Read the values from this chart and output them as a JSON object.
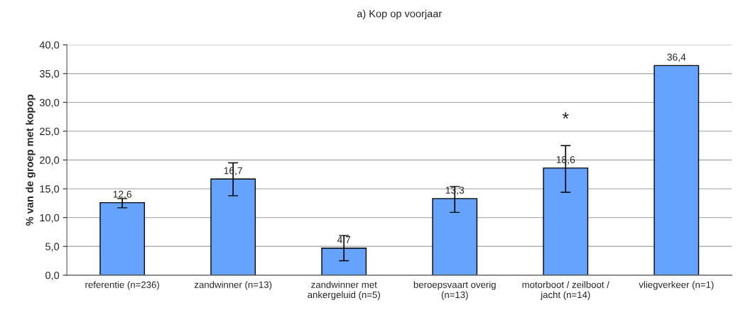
{
  "chart_data": {
    "type": "bar",
    "title": "a) Kop op voorjaar",
    "ylabel": "% van de groep met kopop",
    "categories": [
      "referentie (n=236)",
      "zandwinner (n=13)",
      "zandwinner met\nankergeluid (n=5)",
      "beroepsvaart overig\n(n=13)",
      "motorboot / zeilboot /\njacht (n=14)",
      "vliegverkeer (n=1)"
    ],
    "values": [
      12.6,
      16.7,
      4.7,
      13.3,
      18.6,
      36.4
    ],
    "value_labels": [
      "12,6",
      "16,7",
      "4,7",
      "13,3",
      "18,6",
      "36,4"
    ],
    "errors": [
      [
        11.7,
        13.3
      ],
      [
        13.8,
        19.5
      ],
      [
        2.5,
        6.9
      ],
      [
        10.9,
        15.4
      ],
      [
        14.4,
        22.5
      ],
      null
    ],
    "color": "#66a3ff",
    "annotations": [
      "*"
    ],
    "ylim": [
      0,
      40
    ],
    "yticks": [
      {
        "value": 0,
        "label": "0,0"
      },
      {
        "value": 5,
        "label": "5,0"
      },
      {
        "value": 10,
        "label": "10,0"
      },
      {
        "value": 15,
        "label": "15,0"
      },
      {
        "value": 20,
        "label": "20,0"
      },
      {
        "value": 25,
        "label": "25,0"
      },
      {
        "value": 30,
        "label": "30,0"
      },
      {
        "value": 35,
        "label": "35,0"
      },
      {
        "value": 40,
        "label": "40,0"
      }
    ],
    "grid": "y"
  }
}
